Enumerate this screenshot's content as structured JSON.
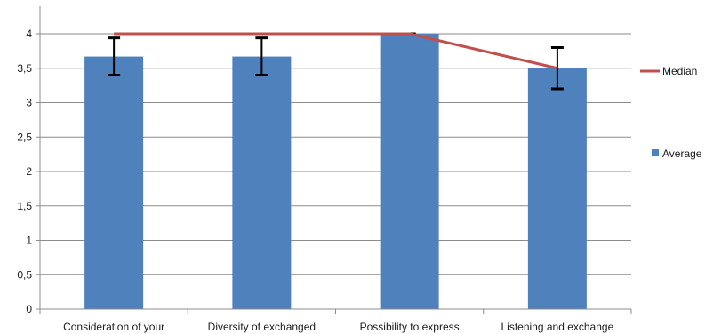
{
  "chart_data": {
    "type": "bar",
    "categories": [
      "Consideration of your",
      "Diversity of exchanged",
      "Possibility to express",
      "Listening and exchange"
    ],
    "series": [
      {
        "name": "Average",
        "type": "bar",
        "values": [
          3.67,
          3.67,
          4.0,
          3.5
        ],
        "error": [
          0.27,
          0.27,
          0.0,
          0.3
        ],
        "color": "#4f81bd"
      },
      {
        "name": "Median",
        "type": "line",
        "values": [
          4,
          4,
          4,
          3.5
        ],
        "color": "#c0504d"
      }
    ],
    "yticks": [
      "0",
      "0,5",
      "1",
      "1,5",
      "2",
      "2,5",
      "3",
      "3,5",
      "4"
    ],
    "ylim": [
      0,
      4.4
    ],
    "grid": true,
    "legend_position": "right"
  }
}
